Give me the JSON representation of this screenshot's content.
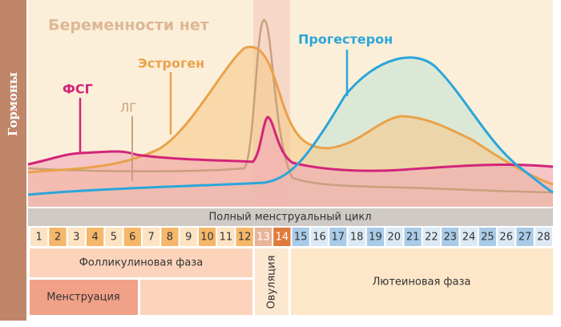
{
  "title": "Беременности нет",
  "axis_label": "Гормоны",
  "hormones": [
    "ФСГ",
    "ЛГ",
    "Эстроген",
    "Прогестерон"
  ],
  "cycle_label": "Полный менструальный цикл",
  "days": [
    1,
    2,
    3,
    4,
    5,
    6,
    7,
    8,
    9,
    10,
    11,
    12,
    13,
    14,
    15,
    16,
    17,
    18,
    19,
    20,
    21,
    22,
    23,
    24,
    25,
    26,
    27,
    28
  ],
  "phases": {
    "follicular": "Фолликулиновая фаза",
    "ovulation": "Овуляция",
    "menstruation": "Менструация",
    "luteal": "Лютеиновая фаза"
  }
}
